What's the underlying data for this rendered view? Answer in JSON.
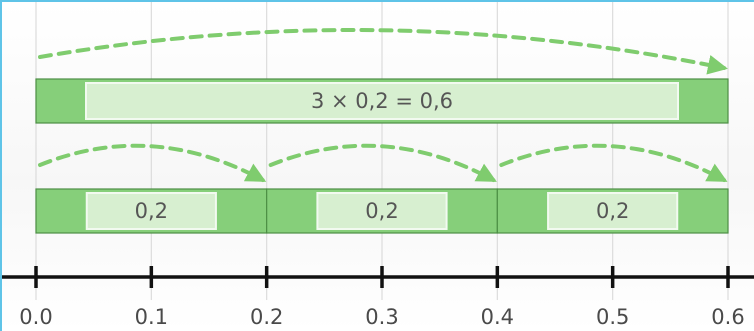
{
  "product_bar": {
    "label": "3 × 0,2 = 0,6",
    "start": 0.0,
    "end": 0.6
  },
  "segments": [
    {
      "label": "0,2",
      "start": 0.0,
      "end": 0.2
    },
    {
      "label": "0,2",
      "start": 0.2,
      "end": 0.4
    },
    {
      "label": "0,2",
      "start": 0.4,
      "end": 0.6
    }
  ],
  "number_line": {
    "min": 0.0,
    "max": 0.6,
    "ticks": [
      {
        "value": 0.0,
        "label": "0.0"
      },
      {
        "value": 0.1,
        "label": "0.1"
      },
      {
        "value": 0.2,
        "label": "0.2"
      },
      {
        "value": 0.3,
        "label": "0.3"
      },
      {
        "value": 0.4,
        "label": "0.4"
      },
      {
        "value": 0.5,
        "label": "0.5"
      },
      {
        "value": 0.6,
        "label": "0.6"
      }
    ]
  },
  "colors": {
    "bar_fill": "#86cf7a",
    "label_box": "#d7efd0",
    "label_box_border": "#f2faf0",
    "bar_border": "#4d8f45",
    "arrow": "#7fcc6e",
    "grid": "#dcdcdc",
    "axis": "#111111"
  }
}
